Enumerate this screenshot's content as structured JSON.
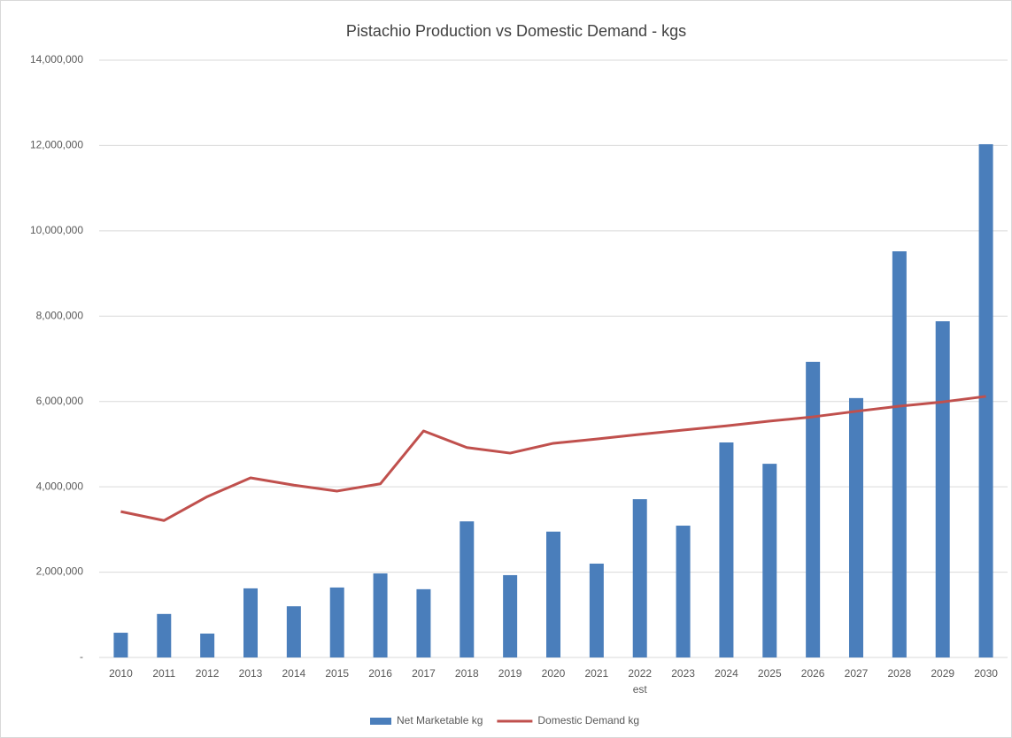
{
  "chart_data": {
    "type": "bar",
    "title": "Pistachio Production vs Domestic Demand - kgs",
    "categories": [
      "2010",
      "2011",
      "2012",
      "2013",
      "2014",
      "2015",
      "2016",
      "2017",
      "2018",
      "2019",
      "2020",
      "2021",
      "2022",
      "2023",
      "2024",
      "2025",
      "2026",
      "2027",
      "2028",
      "2029",
      "2030"
    ],
    "x_annotation": {
      "text": "est",
      "category": "2022"
    },
    "series": [
      {
        "name": "Net Marketable kg",
        "type": "bar",
        "color": "#4a7ebb",
        "values": [
          580000,
          1020000,
          560000,
          1620000,
          1200000,
          1640000,
          1970000,
          1600000,
          3190000,
          1930000,
          2950000,
          2200000,
          3710000,
          3090000,
          5040000,
          4540000,
          6930000,
          6080000,
          9520000,
          7880000,
          12030000
        ]
      },
      {
        "name": "Domestic Demand kg",
        "type": "line",
        "color": "#c0504d",
        "values": [
          3420000,
          3210000,
          3770000,
          4210000,
          4040000,
          3900000,
          4070000,
          5310000,
          4920000,
          4790000,
          5020000,
          5120000,
          5230000,
          5330000,
          5430000,
          5540000,
          5640000,
          5770000,
          5890000,
          5990000,
          6120000
        ]
      }
    ],
    "ylim": [
      0,
      14000000
    ],
    "yticks": [
      {
        "value": 0,
        "label": "-"
      },
      {
        "value": 2000000,
        "label": "2,000,000"
      },
      {
        "value": 4000000,
        "label": "4,000,000"
      },
      {
        "value": 6000000,
        "label": "6,000,000"
      },
      {
        "value": 8000000,
        "label": "8,000,000"
      },
      {
        "value": 10000000,
        "label": "10,000,000"
      },
      {
        "value": 12000000,
        "label": "12,000,000"
      },
      {
        "value": 14000000,
        "label": "14,000,000"
      }
    ],
    "grid": true,
    "legend": "bottom"
  }
}
